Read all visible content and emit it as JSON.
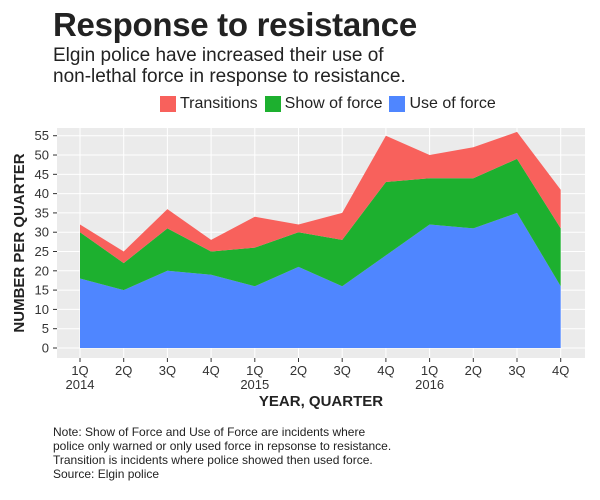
{
  "title": "Response to resistance",
  "subtitle_lines": [
    "Elgin police have increased their use of",
    "non-lethal force in response to resistance."
  ],
  "note_lines": [
    "Note: Show of Force and Use of Force are incidents where",
    "police only warned or only used force in repsonse to resistance.",
    "Transition is incidents where police showed then used force.",
    "Source: Elgin police"
  ],
  "colors": {
    "transitions": "#f8615c",
    "show_of_force": "#1db02f",
    "use_of_force": "#4f86ff",
    "panel": "#ebebeb",
    "grid": "#ffffff"
  },
  "chart_data": {
    "type": "area",
    "stacked": true,
    "title": "Response to resistance",
    "xlabel": "YEAR, QUARTER",
    "ylabel": "NUMBER PER QUARTER",
    "ylim": [
      0,
      57
    ],
    "yticks": [
      0,
      5,
      10,
      15,
      20,
      25,
      30,
      35,
      40,
      45,
      50,
      55
    ],
    "grid": true,
    "legend_position": "top",
    "categories": [
      "1Q",
      "2Q",
      "3Q",
      "4Q",
      "1Q",
      "2Q",
      "3Q",
      "4Q",
      "1Q",
      "2Q",
      "3Q",
      "4Q"
    ],
    "year_labels": [
      "2014",
      "",
      "",
      "",
      "2015",
      "",
      "",
      "",
      "2016",
      "",
      "",
      ""
    ],
    "series": [
      {
        "name": "Use of force",
        "color": "#4f86ff",
        "values": [
          18,
          15,
          20,
          19,
          16,
          21,
          16,
          24,
          32,
          31,
          35,
          16
        ]
      },
      {
        "name": "Show of force",
        "color": "#1db02f",
        "values": [
          12,
          7,
          11,
          6,
          10,
          9,
          12,
          19,
          12,
          13,
          14,
          15
        ]
      },
      {
        "name": "Transitions",
        "color": "#f8615c",
        "values": [
          2,
          3,
          5,
          3,
          8,
          2,
          7,
          12,
          6,
          8,
          7,
          10
        ]
      }
    ],
    "legend_order": [
      "Transitions",
      "Show of force",
      "Use of force"
    ]
  }
}
